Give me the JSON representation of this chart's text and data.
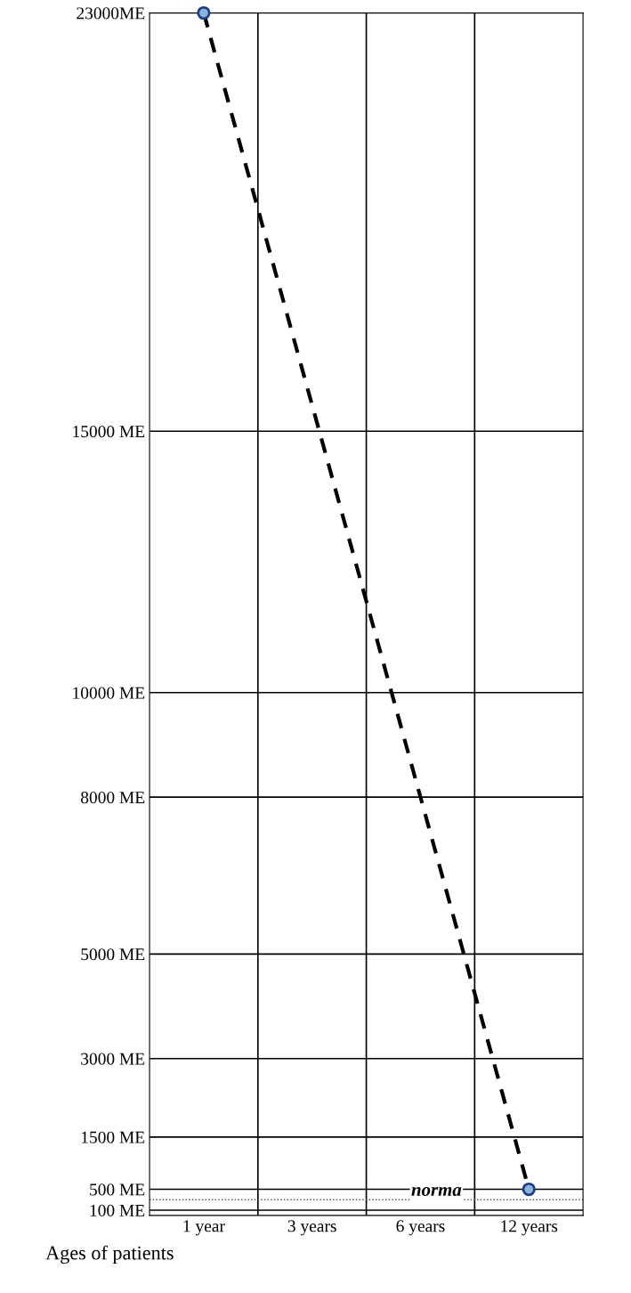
{
  "chart_data": {
    "type": "line",
    "xlabel": "Ages of patients",
    "categories": [
      "1 year",
      "3 years",
      "6 years",
      "12 years"
    ],
    "series": [
      {
        "x": [
          "1 year",
          "12 years"
        ],
        "values": [
          23000,
          500
        ],
        "color": "#000000"
      }
    ],
    "marker": "circle",
    "line_style": "dashed",
    "ylim": [
      0,
      23000
    ],
    "yticks": [
      {
        "value": 100,
        "label": "100 ME"
      },
      {
        "value": 500,
        "label": "500 ME"
      },
      {
        "value": 1500,
        "label": "1500 ME"
      },
      {
        "value": 3000,
        "label": "3000 ME"
      },
      {
        "value": 5000,
        "label": "5000 ME"
      },
      {
        "value": 8000,
        "label": "8000 ME"
      },
      {
        "value": 10000,
        "label": "10000 ME"
      },
      {
        "value": 15000,
        "label": "15000 ME"
      },
      {
        "value": 23000,
        "label": "23000ME"
      }
    ],
    "ref_lines": [
      {
        "axis": "y",
        "value": 300,
        "label": "norma",
        "line_style": "dotted",
        "color": "#555555"
      }
    ],
    "grid": true
  }
}
